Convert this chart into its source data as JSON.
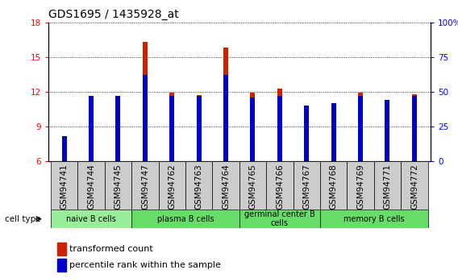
{
  "title": "GDS1695 / 1435928_at",
  "samples": [
    "GSM94741",
    "GSM94744",
    "GSM94745",
    "GSM94747",
    "GSM94762",
    "GSM94763",
    "GSM94764",
    "GSM94765",
    "GSM94766",
    "GSM94767",
    "GSM94768",
    "GSM94769",
    "GSM94771",
    "GSM94772"
  ],
  "red_values": [
    7.0,
    11.4,
    11.3,
    16.3,
    11.9,
    11.7,
    15.8,
    11.9,
    12.3,
    10.5,
    10.9,
    11.9,
    10.5,
    11.8
  ],
  "blue_percentile": [
    18,
    47,
    47,
    62,
    47,
    47,
    62,
    46,
    47,
    40,
    42,
    47,
    44,
    47
  ],
  "ymin": 6,
  "ymax": 18,
  "yticks": [
    6,
    9,
    12,
    15,
    18
  ],
  "right_yticks": [
    0,
    25,
    50,
    75,
    100
  ],
  "bar_color_red": "#cc2200",
  "bar_color_blue": "#0000cc",
  "bar_width": 0.18,
  "blue_bar_width": 0.18,
  "grid_style": "dotted",
  "legend_red": "transformed count",
  "legend_blue": "percentile rank within the sample",
  "cell_type_label": "cell type",
  "title_fontsize": 10,
  "tick_fontsize": 7.5,
  "group_labels": [
    "naive B cells",
    "plasma B cells",
    "germinal center B\ncells",
    "memory B cells"
  ],
  "group_starts": [
    0,
    3,
    7,
    10
  ],
  "group_ends": [
    3,
    7,
    10,
    14
  ],
  "group_colors": [
    "#99ee99",
    "#66dd66",
    "#66dd66",
    "#66dd66"
  ],
  "xtick_area_color": "#cccccc"
}
